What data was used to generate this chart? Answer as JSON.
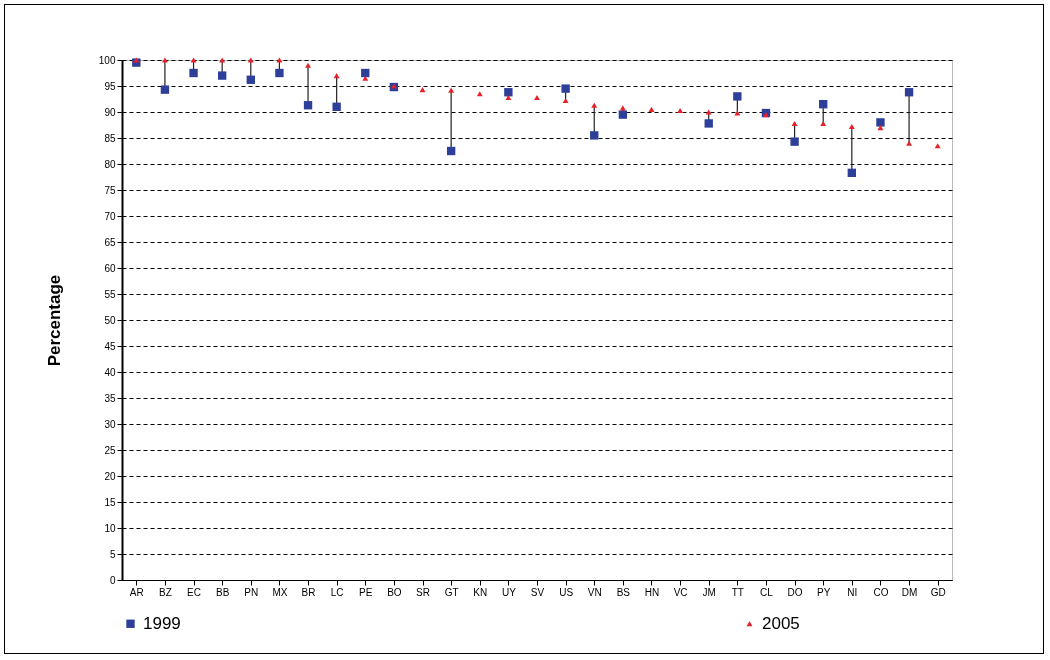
{
  "chart_data": {
    "type": "scatter",
    "ylabel": "Percentage",
    "categories": [
      "AR",
      "BZ",
      "EC",
      "BB",
      "PN",
      "MX",
      "BR",
      "LC",
      "PE",
      "BO",
      "SR",
      "GT",
      "KN",
      "UY",
      "SV",
      "US",
      "VN",
      "BS",
      "HN",
      "VC",
      "JM",
      "TT",
      "CL",
      "DO",
      "PY",
      "NI",
      "CO",
      "DM",
      "GD"
    ],
    "series": [
      {
        "name": "1999",
        "color": "#2e3f9a",
        "marker": "square",
        "values": [
          99.5,
          94.3,
          97.5,
          97,
          96.2,
          97.5,
          91.3,
          91,
          97.5,
          94.8,
          null,
          82.5,
          null,
          93.8,
          null,
          94.5,
          85.5,
          89.5,
          null,
          null,
          87.8,
          93,
          89.8,
          84.3,
          91.5,
          78.3,
          88,
          93.8,
          null
        ]
      },
      {
        "name": "2005",
        "color": "#e8202a",
        "marker": "triangle",
        "values": [
          100,
          100,
          100,
          100,
          100,
          100,
          99,
          97,
          96.5,
          95,
          94.3,
          94.2,
          93.5,
          92.8,
          92.8,
          92.2,
          91.3,
          90.8,
          90.5,
          90.3,
          90,
          89.8,
          89.5,
          87.8,
          87.8,
          87.2,
          87,
          84,
          83.5
        ]
      }
    ],
    "ylim": [
      0,
      100
    ],
    "yticks": [
      0,
      5,
      10,
      15,
      20,
      25,
      30,
      35,
      40,
      45,
      50,
      55,
      60,
      65,
      70,
      75,
      80,
      85,
      90,
      95,
      100
    ],
    "grid": "y",
    "line_style": "dashed",
    "legend": "bottom"
  }
}
